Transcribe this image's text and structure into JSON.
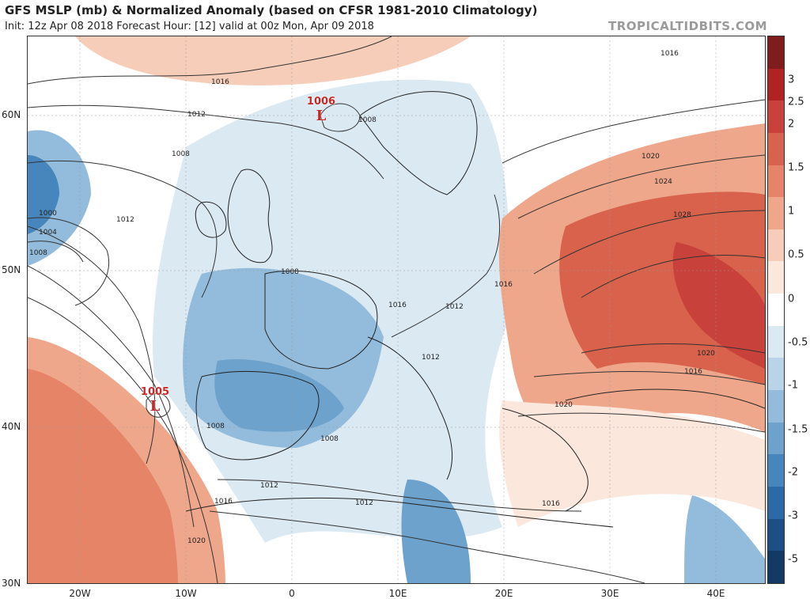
{
  "header": {
    "title": "GFS MSLP (mb) & Normalized Anomaly (based on CFSR 1981-2010 Climatology)",
    "subtitle": "Init: 12z Apr 08 2018   Forecast Hour: [12]   valid at 00z Mon, Apr 09 2018",
    "watermark": "TROPICALTIDBITS.COM"
  },
  "axes": {
    "lat_labels": [
      "60N",
      "50N",
      "40N",
      "30N"
    ],
    "lon_labels": [
      "20W",
      "10W",
      "0",
      "10E",
      "20E",
      "30E",
      "40E"
    ]
  },
  "colorbar": {
    "labels": [
      "3",
      "2.5",
      "2",
      "1.5",
      "1",
      "0.5",
      "0",
      "-0.5",
      "-1",
      "-1.5",
      "-2",
      "-3",
      "-5"
    ],
    "colors": [
      "#7f1d1d",
      "#b22222",
      "#c8413a",
      "#d8624c",
      "#e68468",
      "#efa78c",
      "#f6cdb8",
      "#fbe7dc",
      "#ffffff",
      "#dbe9f3",
      "#b9d4e8",
      "#93bcdc",
      "#6ca2cc",
      "#4786bc",
      "#2b6aa6",
      "#1b4f86",
      "#123a65"
    ]
  },
  "lows": [
    {
      "pressure": "1006",
      "symbol": "L"
    },
    {
      "pressure": "1005",
      "symbol": "L"
    }
  ],
  "isobar_labels": [
    "1016",
    "1012",
    "1008",
    "1000",
    "1004",
    "1008",
    "1012",
    "1016",
    "1020",
    "1008",
    "1008",
    "1012",
    "1016",
    "1020",
    "1024",
    "1028",
    "1020",
    "1016",
    "1012",
    "1016",
    "1020",
    "1008",
    "1008",
    "1012",
    "1016",
    "1012",
    "1016"
  ],
  "colors": {
    "sea": "#ffffff",
    "warm_anomaly": "#e07b62",
    "cold_anomaly": "#5b93c6",
    "isobar": "#333333",
    "low_marker": "#c62828"
  }
}
